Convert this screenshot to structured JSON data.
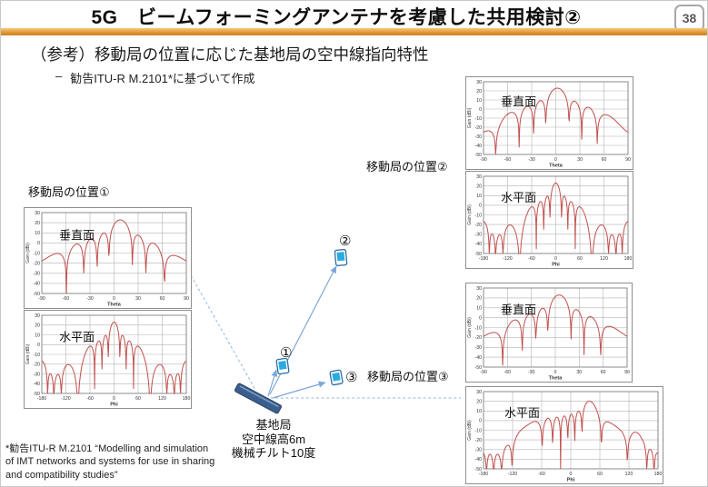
{
  "slide": {
    "title": "5G　ビームフォーミングアンテナを考慮した共用検討②",
    "page_number": "38",
    "subtitle": "（参考）移動局の位置に応じた基地局の空中線指向特性",
    "bullet": {
      "marker": "–",
      "text": "勧告ITU-R M.2101*に基づいて作成"
    },
    "footnote": "*勧告ITU-R M.2101 “Modelling and simulation of IMT networks and systems for use in sharing and compatibility studies”",
    "accent_color": "#E49A35"
  },
  "diagram": {
    "position_labels": {
      "p1": "移動局の位置①",
      "p2": "移動局の位置②",
      "p3": "移動局の位置③"
    },
    "markers": [
      {
        "id": "1",
        "symbol": "①"
      },
      {
        "id": "2",
        "symbol": "②"
      },
      {
        "id": "3",
        "symbol": "③"
      }
    ],
    "base_station_label_lines": [
      "基地局",
      "空中線高6m",
      "機械チルト10度"
    ],
    "colors": {
      "arrow": "#7EA6D8",
      "dashed_link": "#93B7DF",
      "base_station": "#3A5F8F",
      "phone_screen": "#29ABE2",
      "phone_border": "#2E6DA4"
    }
  },
  "chart_style": {
    "line_color": "#C0504D",
    "grid_color": "#B3B3B3",
    "frame_color": "#777777",
    "tick_color": "#333333"
  },
  "chart_data": [
    {
      "type": "line",
      "position": "移動局の位置①",
      "plane_label": "垂直面",
      "xlabel": "Theta",
      "ylabel": "Gain (dBi)",
      "xlim": [
        -90,
        90
      ],
      "ylim": [
        -50,
        30
      ],
      "xticks": [
        -90,
        -60,
        -30,
        0,
        30,
        60,
        90
      ],
      "yticks": [
        30,
        20,
        10,
        0,
        -10,
        -20,
        -30,
        -40,
        -50
      ],
      "peak_gain_dbi": 23,
      "main_lobe_deg": 8,
      "model": {
        "n_elements": 8,
        "element_att_slope": 12,
        "element_width_deg": 65,
        "element_max_att_db": 25,
        "samples": 300
      }
    },
    {
      "type": "line",
      "position": "移動局の位置①",
      "plane_label": "水平面",
      "xlabel": "Phi",
      "ylabel": "Gain (dBi)",
      "xlim": [
        -180,
        180
      ],
      "ylim": [
        -50,
        30
      ],
      "xticks": [
        -180,
        -120,
        -60,
        0,
        60,
        120,
        180
      ],
      "yticks": [
        30,
        20,
        10,
        0,
        -10,
        -20,
        -30,
        -40,
        -50
      ],
      "peak_gain_dbi": 23,
      "main_lobe_deg": 0,
      "model": {
        "n_elements": 8,
        "element_att_slope": 12,
        "element_width_deg": 80,
        "element_max_att_db": 40,
        "samples": 430
      }
    },
    {
      "type": "line",
      "position": "移動局の位置②",
      "plane_label": "垂直面",
      "xlabel": "Theta",
      "ylabel": "Gain (dBi)",
      "xlim": [
        -90,
        90
      ],
      "ylim": [
        -50,
        30
      ],
      "xticks": [
        -90,
        -60,
        -30,
        0,
        30,
        60,
        90
      ],
      "yticks": [
        30,
        20,
        10,
        0,
        -10,
        -20,
        -30,
        -40,
        -50
      ],
      "peak_gain_dbi": 23,
      "main_lobe_deg": 2,
      "model": {
        "n_elements": 8,
        "element_att_slope": 12,
        "element_width_deg": 65,
        "element_max_att_db": 25,
        "samples": 300
      }
    },
    {
      "type": "line",
      "position": "移動局の位置②",
      "plane_label": "水平面",
      "xlabel": "Phi",
      "ylabel": "Gain (dBi)",
      "xlim": [
        -180,
        180
      ],
      "ylim": [
        -50,
        30
      ],
      "xticks": [
        -180,
        -120,
        -60,
        0,
        60,
        120,
        180
      ],
      "yticks": [
        30,
        20,
        10,
        0,
        -10,
        -20,
        -30,
        -40,
        -50
      ],
      "peak_gain_dbi": 23,
      "main_lobe_deg": 0,
      "model": {
        "n_elements": 8,
        "element_att_slope": 12,
        "element_width_deg": 80,
        "element_max_att_db": 40,
        "samples": 430
      }
    },
    {
      "type": "line",
      "position": "移動局の位置③",
      "plane_label": "垂直面",
      "xlabel": "Theta",
      "ylabel": "Gain (dBi)",
      "xlim": [
        -90,
        90
      ],
      "ylim": [
        -50,
        30
      ],
      "xticks": [
        -90,
        -60,
        -30,
        0,
        30,
        60,
        90
      ],
      "yticks": [
        30,
        20,
        10,
        0,
        -10,
        -20,
        -30,
        -40,
        -50
      ],
      "peak_gain_dbi": 23,
      "main_lobe_deg": 5,
      "model": {
        "n_elements": 8,
        "element_att_slope": 12,
        "element_width_deg": 65,
        "element_max_att_db": 25,
        "samples": 300
      }
    },
    {
      "type": "line",
      "position": "移動局の位置③",
      "plane_label": "水平面",
      "xlabel": "Phi",
      "ylabel": "Gain (dBi)",
      "xlim": [
        -180,
        180
      ],
      "ylim": [
        -50,
        30
      ],
      "xticks": [
        -180,
        -120,
        -60,
        0,
        60,
        120,
        180
      ],
      "yticks": [
        30,
        20,
        10,
        0,
        -10,
        -20,
        -30,
        -40,
        -50
      ],
      "peak_gain_dbi": 23,
      "main_lobe_deg": 40,
      "model": {
        "n_elements": 8,
        "element_att_slope": 12,
        "element_width_deg": 80,
        "element_max_att_db": 40,
        "samples": 430
      }
    }
  ]
}
